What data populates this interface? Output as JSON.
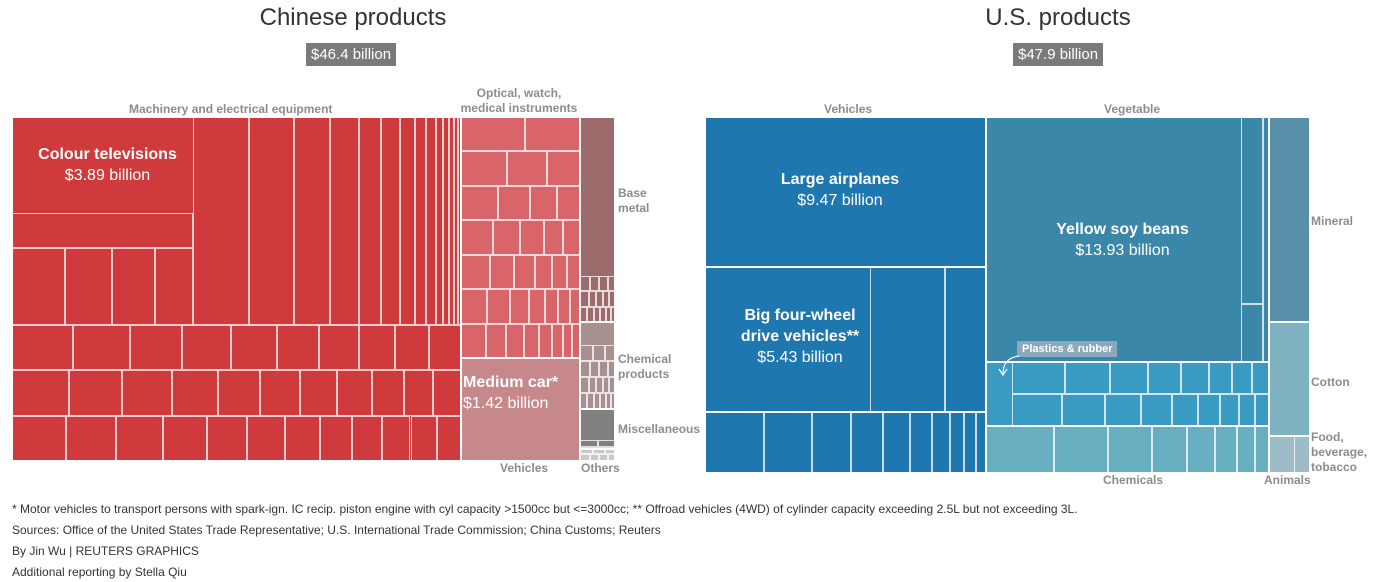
{
  "chart_data": [
    {
      "type": "treemap",
      "title": "Chinese products",
      "total": "$46.4 billion",
      "categories": [
        {
          "name": "Machinery and electrical equipment",
          "color": "#cf3b3c"
        },
        {
          "name": "Optical, watch, medical instruments",
          "color": "#d9646a"
        },
        {
          "name": "Vehicles",
          "color": "#c7888c"
        },
        {
          "name": "Base metal",
          "color": "#9e6b6d"
        },
        {
          "name": "Chemical products",
          "color": "#a79090"
        },
        {
          "name": "Miscellaneous",
          "color": "#808080"
        },
        {
          "name": "Others",
          "color": "#c9c9c9"
        }
      ],
      "highlights": [
        {
          "name": "Colour televisions",
          "value": "$3.89 billion",
          "value_billion": 3.89,
          "category": "Machinery and electrical equipment"
        },
        {
          "name": "Medium car*",
          "value": "$1.42 billion",
          "value_billion": 1.42,
          "category": "Vehicles"
        }
      ]
    },
    {
      "type": "treemap",
      "title": "U.S. products",
      "total": "$47.9 billion",
      "categories": [
        {
          "name": "Vehicles",
          "color": "#1f77b0"
        },
        {
          "name": "Vegetable",
          "color": "#3a87aa"
        },
        {
          "name": "Mineral",
          "color": "#5790a8"
        },
        {
          "name": "Cotton",
          "color": "#7eb2c0"
        },
        {
          "name": "Food, beverage, tobacco",
          "color": "#9dbcc8"
        },
        {
          "name": "Plastics & rubber",
          "color": "#3a9bc2"
        },
        {
          "name": "Chemicals",
          "color": "#67aec0"
        },
        {
          "name": "Animals",
          "color": "#b6ccd6"
        }
      ],
      "highlights": [
        {
          "name": "Large airplanes",
          "value": "$9.47 billion",
          "value_billion": 9.47,
          "category": "Vehicles"
        },
        {
          "name": "Big four-wheel drive vehicles**",
          "value": "$5.43 billion",
          "value_billion": 5.43,
          "category": "Vehicles"
        },
        {
          "name": "Yellow soy beans",
          "value": "$13.93 billion",
          "value_billion": 13.93,
          "category": "Vegetable"
        }
      ]
    }
  ],
  "labels": {
    "cn_machinery": "Machinery and electrical equipment",
    "cn_optical_1": "Optical, watch,",
    "cn_optical_2": "medical instruments",
    "cn_base_1": "Base",
    "cn_base_2": "metal",
    "cn_chem_1": "Chemical",
    "cn_chem_2": "products",
    "cn_misc": "Miscellaneous",
    "cn_vehicles": "Vehicles",
    "cn_others": "Others",
    "cn_tv_name": "Colour televisions",
    "cn_tv_value": "$3.89 billion",
    "cn_car_name": "Medium car*",
    "cn_car_value": "$1.42 billion",
    "us_vehicles": "Vehicles",
    "us_vegetable": "Vegetable",
    "us_mineral": "Mineral",
    "us_cotton": "Cotton",
    "us_food_1": "Food,",
    "us_food_2": "beverage,",
    "us_food_3": "tobacco",
    "us_chemicals": "Chemicals",
    "us_animals": "Animals",
    "us_plastics": "Plastics & rubber",
    "us_air_name": "Large airplanes",
    "us_air_value": "$9.47 billion",
    "us_4wd_name_1": "Big four-wheel",
    "us_4wd_name_2": "drive vehicles**",
    "us_4wd_value": "$5.43 billion",
    "us_soy_name": "Yellow soy beans",
    "us_soy_value": "$13.93 billion"
  },
  "footer": {
    "note": "* Motor vehicles to transport persons with spark-ign. IC recip. piston engine with cyl capacity >1500cc but <=3000cc; ** Offroad vehicles (4WD) of cylinder capacity exceeding 2.5L but not exceeding 3L.",
    "sources": "Sources: Office of the United States Trade Representative; U.S. International Trade Commission; China Customs; Reuters",
    "byline": "By Jin Wu | REUTERS GRAPHICS",
    "additional": "Additional reporting by Stella Qiu"
  }
}
